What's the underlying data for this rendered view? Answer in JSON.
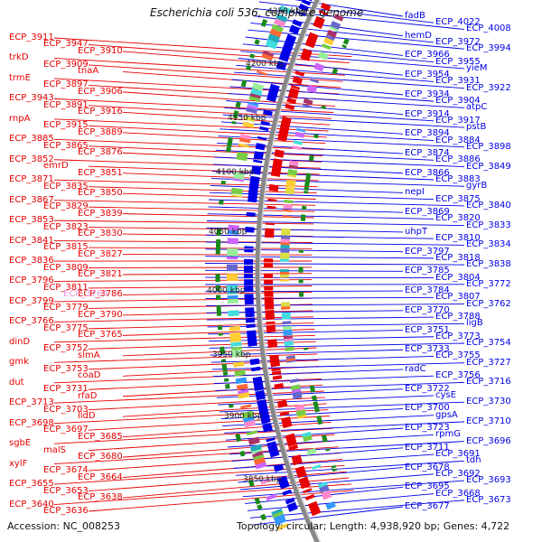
{
  "title": "Escherichia coli 536, complete genome",
  "footer": {
    "accession": "Accession: NC_008253",
    "topology": "Topology: circular; Length: 4,938,920 bp; Genes: 4,722"
  },
  "colors": {
    "minus_strand": "#e60000",
    "plus_strand": "#0000e6",
    "pseudo_label": "#f29ad8",
    "backbone": "#888888",
    "gc_marks": "#1a8a1a"
  },
  "kbp_ticks": [
    "4250 kbp",
    "4200 kbp",
    "4150 kbp",
    "4100 kbp",
    "4050 kbp",
    "4000 kbp",
    "3950 kbp",
    "3900 kbp",
    "3850 kbp"
  ],
  "minus_strand_labels": [
    "ECP_3911",
    "ECP_3947",
    "ECP_3910",
    "trkD",
    "ECP_3909",
    "tnaA",
    "trmE",
    "ECP_3897",
    "ECP_3906",
    "ECP_3943",
    "ECP_3891",
    "ECP_3916",
    "rnpA",
    "ECP_3915",
    "ECP_3889",
    "ECP_3885",
    "ECP_3865",
    "ECP_3876",
    "ECP_3852",
    "emrD",
    "ECP_3851",
    "ECP_3871",
    "ECP_3835",
    "ECP_3850",
    "ECP_3867",
    "ECP_3829",
    "ECP_3839",
    "ECP_3853",
    "ECP_3823",
    "ECP_3830",
    "ECP_3841",
    "ECP_3815",
    "ECP_3827",
    "ECP_3836",
    "ECP_3809",
    "ECP_3821",
    "ECP_3796",
    "ECP_3811",
    "ECP_3786",
    "ECP_3799",
    "ECP_3779",
    "ECP_3790",
    "ECP_3766",
    "ECP_3775",
    "ECP_3765",
    "dinD",
    "ECP_3752",
    "slmA",
    "gmk",
    "ECP_3753",
    "coaD",
    "dut",
    "ECP_3731",
    "rfaD",
    "ECP_3713",
    "ECP_3703",
    "lldD",
    "ECP_3698",
    "ECP_3697",
    "ECP_3685",
    "sgbE",
    "malS",
    "ECP_3680",
    "xylF",
    "ECP_3674",
    "ECP_3664",
    "ECP_3655",
    "ECP_3653",
    "ECP_3638",
    "ECP_3640",
    "ECP_3636"
  ],
  "pseudo_labels": [
    "ECP_3764"
  ],
  "plus_strand_labels": [
    "fadB",
    "ECP_4022",
    "ECP_4008",
    "hemD",
    "ECP_3972",
    "ECP_3994",
    "ECP_3966",
    "ECP_3955",
    "yieM",
    "ECP_3954",
    "ECP_3931",
    "ECP_3922",
    "ECP_3934",
    "ECP_3904",
    "atpC",
    "ECP_3914",
    "ECP_3917",
    "pstB",
    "ECP_3894",
    "ECP_3884",
    "ECP_3898",
    "ECP_3874",
    "ECP_3886",
    "ECP_3849",
    "ECP_3866",
    "ECP_3883",
    "gyrB",
    "nepI",
    "ECP_3875",
    "ECP_3840",
    "ECP_3869",
    "ECP_3820",
    "ECP_3833",
    "uhpT",
    "ECP_3810",
    "ECP_3834",
    "ECP_3797",
    "ECP_3818",
    "ECP_3838",
    "ECP_3785",
    "ECP_3804",
    "ECP_3772",
    "ECP_3784",
    "ECP_3807",
    "ECP_3762",
    "ECP_3770",
    "ECP_3788",
    "ligB",
    "ECP_3751",
    "ECP_3773",
    "ECP_3754",
    "ECP_3733",
    "ECP_3755",
    "ECP_3727",
    "radC",
    "ECP_3756",
    "ECP_3716",
    "ECP_3722",
    "cysE",
    "ECP_3730",
    "ECP_3700",
    "gpsA",
    "ECP_3710",
    "ECP_3723",
    "rpmG",
    "ECP_3696",
    "ECP_3711",
    "ECP_3691",
    "tdh",
    "ECP_3678",
    "ECP_3692",
    "ECP_3693",
    "ECP_3695",
    "ECP_3668",
    "ECP_3673",
    "ECP_3677"
  ]
}
